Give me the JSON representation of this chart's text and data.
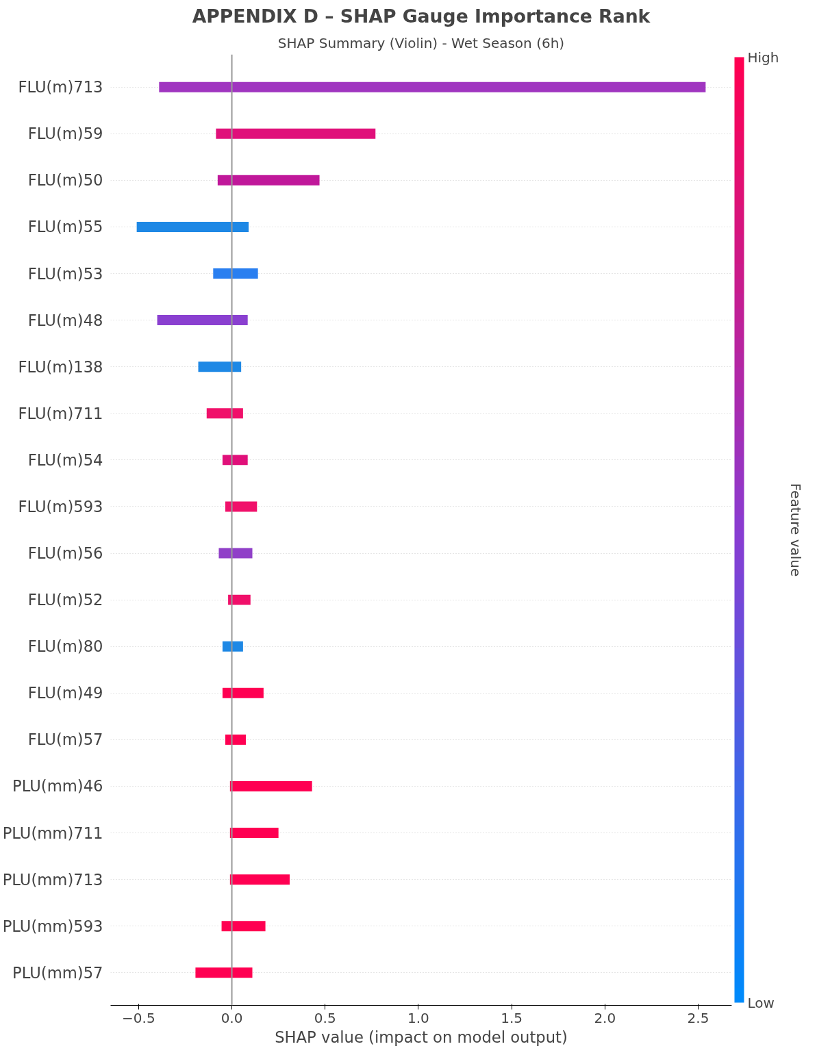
{
  "chart_data": {
    "type": "bar",
    "orientation": "horizontal",
    "title": "APPENDIX D – SHAP Gauge Importance Rank",
    "subtitle": "SHAP Summary (Violin) - Wet Season (6h)",
    "xlabel": "SHAP value (impact on model output)",
    "clabel": "Feature value",
    "clim": [
      0,
      1
    ],
    "cticks": [
      {
        "value": 0,
        "label": "Low"
      },
      {
        "value": 1,
        "label": "High"
      }
    ],
    "categories": [
      "FLU(m)713",
      "FLU(m)59",
      "FLU(m)50",
      "FLU(m)55",
      "FLU(m)53",
      "FLU(m)48",
      "FLU(m)138",
      "FLU(m)711",
      "FLU(m)54",
      "FLU(m)593",
      "FLU(m)56",
      "FLU(m)52",
      "FLU(m)80",
      "FLU(m)49",
      "FLU(m)57",
      "PLU(mm)46",
      "PLU(mm)711",
      "PLU(mm)713",
      "PLU(mm)593",
      "PLU(mm)57"
    ],
    "base": [
      -0.39,
      -0.085,
      -0.076,
      -0.51,
      -0.1,
      -0.4,
      -0.18,
      -0.135,
      -0.05,
      -0.035,
      -0.07,
      -0.02,
      -0.05,
      -0.05,
      -0.035,
      -0.01,
      -0.01,
      -0.01,
      -0.055,
      -0.195
    ],
    "values": [
      2.93,
      0.855,
      0.546,
      0.6,
      0.24,
      0.485,
      0.23,
      0.195,
      0.135,
      0.17,
      0.18,
      0.12,
      0.11,
      0.22,
      0.11,
      0.44,
      0.26,
      0.32,
      0.235,
      0.305
    ],
    "colors": [
      "#a035c0",
      "#e0107a",
      "#c0189a",
      "#1e88e5",
      "#2a7ff0",
      "#8a40d0",
      "#1e88e5",
      "#f0106a",
      "#e0107a",
      "#f0106a",
      "#9040c8",
      "#f0106a",
      "#1e88e5",
      "#ff0052",
      "#ff0052",
      "#ff0052",
      "#ff0052",
      "#ff0052",
      "#ff0052",
      "#ff0052"
    ],
    "xlim": [
      -0.65,
      2.68
    ],
    "xticks": [
      {
        "value": -0.5,
        "label": "−0.5"
      },
      {
        "value": 0,
        "label": "0.0"
      },
      {
        "value": 0.5,
        "label": "0.5"
      },
      {
        "value": 1,
        "label": "1.0"
      },
      {
        "value": 1.5,
        "label": "1.5"
      },
      {
        "value": 2,
        "label": "2.0"
      },
      {
        "value": 2.5,
        "label": "2.5"
      }
    ],
    "ref_lines": [
      {
        "axis": "x",
        "value": 0,
        "color": "#999999"
      }
    ],
    "grid": "y"
  }
}
